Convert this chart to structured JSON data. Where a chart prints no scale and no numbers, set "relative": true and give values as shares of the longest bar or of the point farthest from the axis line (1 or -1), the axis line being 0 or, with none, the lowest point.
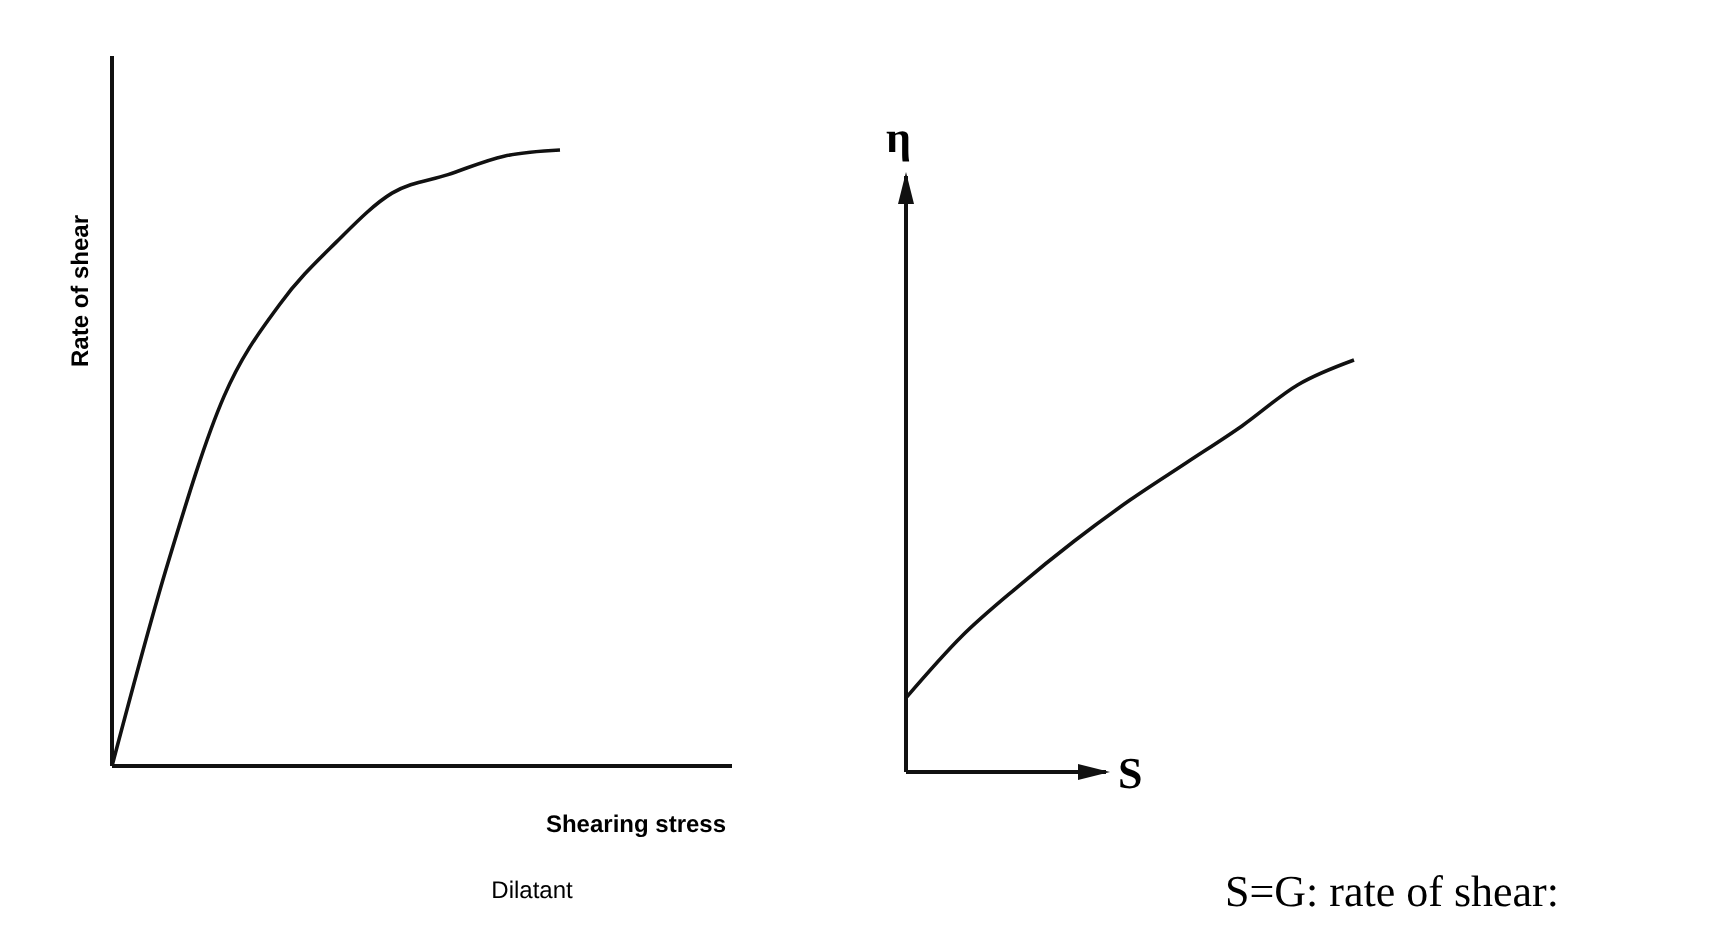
{
  "chart_data": [
    {
      "type": "line",
      "relative": true,
      "ylabel": "Rate of shear",
      "xlabel": "Shearing stress",
      "annotations": [
        "Dilatant"
      ],
      "categories": [
        null,
        null,
        null,
        null,
        null,
        null,
        null,
        null,
        null,
        null,
        null,
        null
      ],
      "series": [
        {
          "color": "#111111",
          "values": [
            0,
            0.33,
            0.6,
            0.75,
            0.85,
            0.93,
            0.96,
            0.99,
            1,
            null,
            null,
            null
          ]
        }
      ]
    },
    {
      "type": "line",
      "relative": true,
      "ylabel": "η",
      "xlabel": "S",
      "annotations": [
        "S=G: rate of shear:"
      ],
      "categories": [
        null,
        null,
        null,
        null,
        null,
        null,
        null,
        null,
        null,
        null,
        null,
        null,
        null,
        null
      ],
      "series": [
        {
          "color": "#111111",
          "values": [
            0.18,
            0.33,
            0.45,
            0.56,
            0.66,
            0.75,
            0.84,
            0.94,
            1,
            null,
            null,
            null,
            null,
            null
          ]
        }
      ]
    }
  ]
}
